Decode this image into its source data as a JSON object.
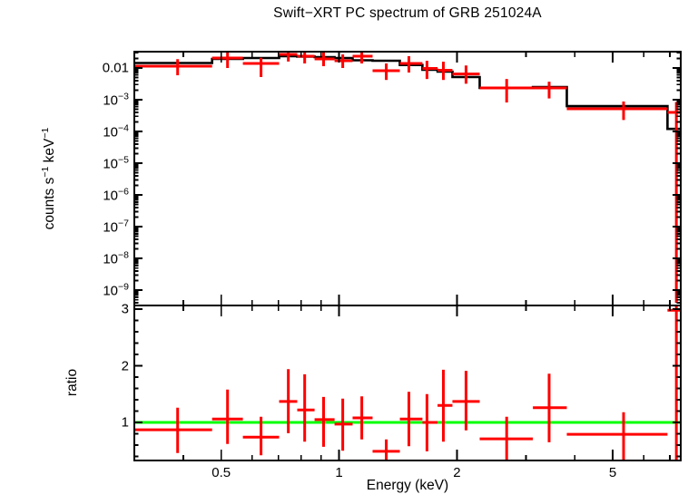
{
  "title": "Swift−XRT PC spectrum of GRB 251024A",
  "colors": {
    "data": "#ff0000",
    "model": "#000000",
    "reference": "#00ff00",
    "frame": "#000000",
    "background": "#ffffff"
  },
  "chart_data": [
    {
      "type": "scatter",
      "panel": "spectrum",
      "title": "Swift−XRT PC spectrum of GRB 251024A",
      "xlabel": "Energy (keV)",
      "ylabel": "counts s⁻¹ keV⁻¹",
      "ylabel_rich": [
        {
          "text": "counts s"
        },
        {
          "text": "−1",
          "sup": true
        },
        {
          "text": " keV"
        },
        {
          "text": "−1",
          "sup": true
        }
      ],
      "xscale": "log",
      "yscale": "log",
      "xlim": [
        0.3,
        7.46
      ],
      "ylim": [
        3.3e-10,
        0.0327
      ],
      "grid": false,
      "legend": "none",
      "x_ticks": [
        {
          "v": 0.5,
          "label": "0.5"
        },
        {
          "v": 1,
          "label": "1"
        },
        {
          "v": 2,
          "label": "2"
        },
        {
          "v": 5,
          "label": "5"
        }
      ],
      "x_minor_ticks": [
        0.4,
        0.6,
        0.7,
        0.8,
        0.9,
        3,
        4,
        6,
        7
      ],
      "y_ticks": [
        {
          "v": 0.01,
          "label": "0.01"
        },
        {
          "v": 0.001,
          "label": "10",
          "exp": "−3"
        },
        {
          "v": 0.0001,
          "label": "10",
          "exp": "−4"
        },
        {
          "v": 1e-05,
          "label": "10",
          "exp": "−5"
        },
        {
          "v": 1e-06,
          "label": "10",
          "exp": "−6"
        },
        {
          "v": 1e-07,
          "label": "10",
          "exp": "−7"
        },
        {
          "v": 1e-08,
          "label": "10",
          "exp": "−8"
        },
        {
          "v": 1e-09,
          "label": "10",
          "exp": "−9"
        }
      ],
      "points": [
        {
          "x": 0.387,
          "xlo": 0.3,
          "xhi": 0.474,
          "y": 0.0114,
          "ylo": 0.0059,
          "yhi": 0.019
        },
        {
          "x": 0.519,
          "xlo": 0.474,
          "xhi": 0.568,
          "y": 0.0206,
          "ylo": 0.01,
          "yhi": 0.031
        },
        {
          "x": 0.632,
          "xlo": 0.568,
          "xhi": 0.703,
          "y": 0.0139,
          "ylo": 0.0052,
          "yhi": 0.021
        },
        {
          "x": 0.742,
          "xlo": 0.703,
          "xhi": 0.782,
          "y": 0.0268,
          "ylo": 0.016,
          "yhi": 0.035
        },
        {
          "x": 0.817,
          "xlo": 0.782,
          "xhi": 0.866,
          "y": 0.0235,
          "ylo": 0.0139,
          "yhi": 0.035
        },
        {
          "x": 0.913,
          "xlo": 0.866,
          "xhi": 0.974,
          "y": 0.0193,
          "ylo": 0.0114,
          "yhi": 0.031
        },
        {
          "x": 1.022,
          "xlo": 0.974,
          "xhi": 1.083,
          "y": 0.0169,
          "ylo": 0.01,
          "yhi": 0.0268
        },
        {
          "x": 1.143,
          "xlo": 1.083,
          "xhi": 1.218,
          "y": 0.0235,
          "ylo": 0.0139,
          "yhi": 0.035
        },
        {
          "x": 1.32,
          "xlo": 1.218,
          "xhi": 1.43,
          "y": 0.0082,
          "ylo": 0.0042,
          "yhi": 0.0139
        },
        {
          "x": 1.508,
          "xlo": 1.43,
          "xhi": 1.633,
          "y": 0.0139,
          "ylo": 0.0072,
          "yhi": 0.0236
        },
        {
          "x": 1.677,
          "xlo": 1.633,
          "xhi": 1.785,
          "y": 0.0097,
          "ylo": 0.0045,
          "yhi": 0.0169
        },
        {
          "x": 1.847,
          "xlo": 1.785,
          "xhi": 1.948,
          "y": 0.0085,
          "ylo": 0.0042,
          "yhi": 0.0158
        },
        {
          "x": 2.11,
          "xlo": 1.948,
          "xhi": 2.287,
          "y": 0.0065,
          "ylo": 0.0032,
          "yhi": 0.012
        },
        {
          "x": 2.68,
          "xlo": 2.287,
          "xhi": 3.127,
          "y": 0.00235,
          "ylo": 0.00082,
          "yhi": 0.0045
        },
        {
          "x": 3.44,
          "xlo": 3.127,
          "xhi": 3.817,
          "y": 0.00235,
          "ylo": 0.0011,
          "yhi": 0.0037
        },
        {
          "x": 5.33,
          "xlo": 3.817,
          "xhi": 6.9,
          "y": 0.00052,
          "ylo": 0.00023,
          "yhi": 0.00088
        },
        {
          "x": 7.27,
          "xlo": 6.9,
          "xhi": 7.46,
          "y": 0.0004,
          "ylo": 4e-10,
          "yhi": 0.00085
        }
      ],
      "model_steps": [
        {
          "x1": 0.3,
          "x2": 0.474,
          "y": 0.0144
        },
        {
          "x1": 0.474,
          "x2": 0.568,
          "y": 0.0193
        },
        {
          "x1": 0.568,
          "x2": 0.703,
          "y": 0.0206
        },
        {
          "x1": 0.703,
          "x2": 0.782,
          "y": 0.0235
        },
        {
          "x1": 0.782,
          "x2": 0.866,
          "y": 0.023
        },
        {
          "x1": 0.866,
          "x2": 0.974,
          "y": 0.022
        },
        {
          "x1": 0.974,
          "x2": 1.083,
          "y": 0.0206
        },
        {
          "x1": 1.083,
          "x2": 1.218,
          "y": 0.0175
        },
        {
          "x1": 1.218,
          "x2": 1.43,
          "y": 0.0169
        },
        {
          "x1": 1.43,
          "x2": 1.633,
          "y": 0.0124
        },
        {
          "x1": 1.633,
          "x2": 1.785,
          "y": 0.0088
        },
        {
          "x1": 1.785,
          "x2": 1.948,
          "y": 0.0077
        },
        {
          "x1": 1.948,
          "x2": 2.287,
          "y": 0.0052
        },
        {
          "x1": 2.287,
          "x2": 3.127,
          "y": 0.00235
        },
        {
          "x1": 3.127,
          "x2": 3.817,
          "y": 0.0025
        },
        {
          "x1": 3.817,
          "x2": 6.9,
          "y": 0.00063
        },
        {
          "x1": 6.9,
          "x2": 7.46,
          "y": 0.000121
        }
      ]
    },
    {
      "type": "scatter",
      "panel": "ratio",
      "xlabel": "Energy (keV)",
      "ylabel": "ratio",
      "xscale": "log",
      "yscale": "linear",
      "xlim": [
        0.3,
        7.46
      ],
      "ylim": [
        0.328,
        3.064
      ],
      "grid": false,
      "legend": "none",
      "x_ticks": [
        {
          "v": 0.5,
          "label": "0.5"
        },
        {
          "v": 1,
          "label": "1"
        },
        {
          "v": 2,
          "label": "2"
        },
        {
          "v": 5,
          "label": "5"
        }
      ],
      "x_minor_ticks": [
        0.4,
        0.6,
        0.7,
        0.8,
        0.9,
        3,
        4,
        6,
        7
      ],
      "y_ticks": [
        {
          "v": 1,
          "label": "1"
        },
        {
          "v": 2,
          "label": "2"
        },
        {
          "v": 3,
          "label": "3"
        }
      ],
      "y_minor_step": 0.2,
      "reference_line": {
        "y": 1.0,
        "color": "#00ff00"
      },
      "points": [
        {
          "x": 0.387,
          "xlo": 0.3,
          "xhi": 0.474,
          "y": 0.87,
          "ylo": 0.46,
          "yhi": 1.26
        },
        {
          "x": 0.519,
          "xlo": 0.474,
          "xhi": 0.568,
          "y": 1.06,
          "ylo": 0.62,
          "yhi": 1.58
        },
        {
          "x": 0.632,
          "xlo": 0.568,
          "xhi": 0.703,
          "y": 0.74,
          "ylo": 0.42,
          "yhi": 1.1
        },
        {
          "x": 0.742,
          "xlo": 0.703,
          "xhi": 0.782,
          "y": 1.37,
          "ylo": 0.81,
          "yhi": 1.94
        },
        {
          "x": 0.817,
          "xlo": 0.782,
          "xhi": 0.866,
          "y": 1.22,
          "ylo": 0.66,
          "yhi": 1.85
        },
        {
          "x": 0.913,
          "xlo": 0.866,
          "xhi": 0.974,
          "y": 1.05,
          "ylo": 0.57,
          "yhi": 1.45
        },
        {
          "x": 1.022,
          "xlo": 0.974,
          "xhi": 1.083,
          "y": 0.97,
          "ylo": 0.5,
          "yhi": 1.42
        },
        {
          "x": 1.143,
          "xlo": 1.083,
          "xhi": 1.218,
          "y": 1.08,
          "ylo": 0.7,
          "yhi": 1.46
        },
        {
          "x": 1.32,
          "xlo": 1.218,
          "xhi": 1.43,
          "y": 0.49,
          "ylo": 0.3,
          "yhi": 0.7
        },
        {
          "x": 1.508,
          "xlo": 1.43,
          "xhi": 1.633,
          "y": 1.06,
          "ylo": 0.58,
          "yhi": 1.54
        },
        {
          "x": 1.677,
          "xlo": 1.633,
          "xhi": 1.785,
          "y": 1.0,
          "ylo": 0.49,
          "yhi": 1.5
        },
        {
          "x": 1.847,
          "xlo": 1.785,
          "xhi": 1.948,
          "y": 1.3,
          "ylo": 0.66,
          "yhi": 1.93
        },
        {
          "x": 2.11,
          "xlo": 1.948,
          "xhi": 2.287,
          "y": 1.37,
          "ylo": 0.86,
          "yhi": 1.91
        },
        {
          "x": 2.68,
          "xlo": 2.287,
          "xhi": 3.127,
          "y": 0.71,
          "ylo": 0.3,
          "yhi": 1.1
        },
        {
          "x": 3.44,
          "xlo": 3.127,
          "xhi": 3.817,
          "y": 1.26,
          "ylo": 0.65,
          "yhi": 1.86
        },
        {
          "x": 5.33,
          "xlo": 3.817,
          "xhi": 6.9,
          "y": 0.79,
          "ylo": 0.3,
          "yhi": 1.18
        },
        {
          "x": 7.27,
          "xlo": 6.9,
          "xhi": 7.46,
          "y": 2.98,
          "ylo": 0.3,
          "yhi": 3.2
        }
      ]
    }
  ]
}
